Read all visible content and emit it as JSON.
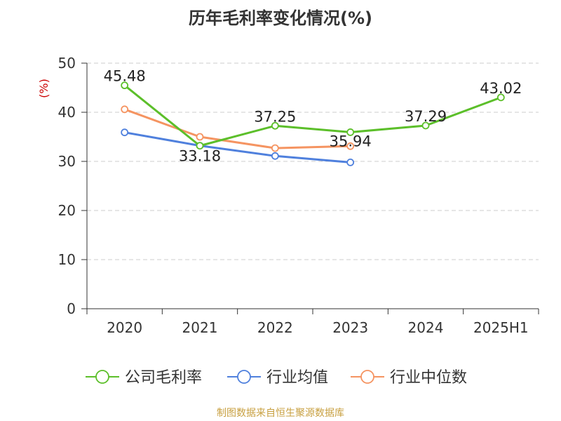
{
  "chart_data": {
    "type": "line",
    "title": "历年毛利率变化情况(%)",
    "ylabel": "(%)",
    "xlabel": "",
    "categories": [
      "2020",
      "2021",
      "2022",
      "2023",
      "2024",
      "2025H1"
    ],
    "ylim": [
      0,
      50
    ],
    "yticks": [
      0,
      10,
      20,
      30,
      40,
      50
    ],
    "grid": true,
    "legend_position": "bottom",
    "series": [
      {
        "name": "公司毛利率",
        "color": "#5cbf2a",
        "values": [
          45.48,
          33.18,
          37.25,
          35.94,
          37.29,
          43.02
        ],
        "labels": [
          "45.48",
          "33.18",
          "37.25",
          "35.94",
          "37.29",
          "43.02"
        ]
      },
      {
        "name": "行业均值",
        "color": "#4f80dd",
        "values": [
          35.9,
          33.2,
          31.1,
          29.8,
          null,
          null
        ]
      },
      {
        "name": "行业中位数",
        "color": "#f59461",
        "values": [
          40.6,
          35.0,
          32.7,
          33.1,
          null,
          null
        ]
      }
    ]
  },
  "source": "制图数据来自恒生聚源数据库"
}
